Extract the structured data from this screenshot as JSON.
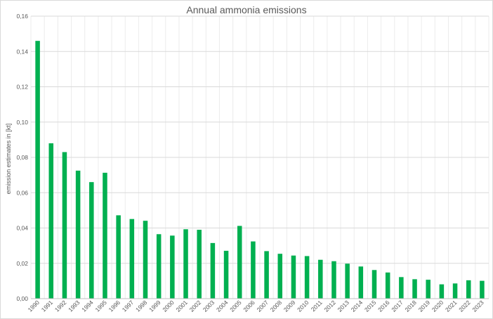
{
  "chart_data": {
    "type": "bar",
    "title": "Annual ammonia emissions",
    "xlabel": "",
    "ylabel": "emission estimates in [kt]",
    "ylim": [
      0,
      0.16
    ],
    "y_ticks": [
      "0,00",
      "0,02",
      "0,04",
      "0,06",
      "0,08",
      "0,10",
      "0,12",
      "0,14",
      "0,16"
    ],
    "y_tick_values": [
      0,
      0.02,
      0.04,
      0.06,
      0.08,
      0.1,
      0.12,
      0.14,
      0.16
    ],
    "grid": true,
    "legend": "none",
    "bar_color": "#00b050",
    "categories": [
      "1990",
      "1991",
      "1992",
      "1993",
      "1994",
      "1995",
      "1996",
      "1997",
      "1998",
      "1999",
      "2000",
      "2001",
      "2002",
      "2003",
      "2004",
      "2005",
      "2006",
      "2007",
      "2008",
      "2009",
      "2010",
      "2011",
      "2012",
      "2013",
      "2014",
      "2015",
      "2016",
      "2017",
      "2018",
      "2019",
      "2020",
      "2021",
      "2022",
      "2023"
    ],
    "values": [
      0.146,
      0.088,
      0.083,
      0.0725,
      0.066,
      0.0713,
      0.0472,
      0.0451,
      0.0441,
      0.0365,
      0.0357,
      0.0393,
      0.039,
      0.0315,
      0.0271,
      0.0412,
      0.0324,
      0.0269,
      0.0254,
      0.0244,
      0.0241,
      0.022,
      0.0212,
      0.0198,
      0.0182,
      0.0162,
      0.0148,
      0.0122,
      0.011,
      0.0107,
      0.0081,
      0.0086,
      0.0104,
      0.0101
    ]
  }
}
